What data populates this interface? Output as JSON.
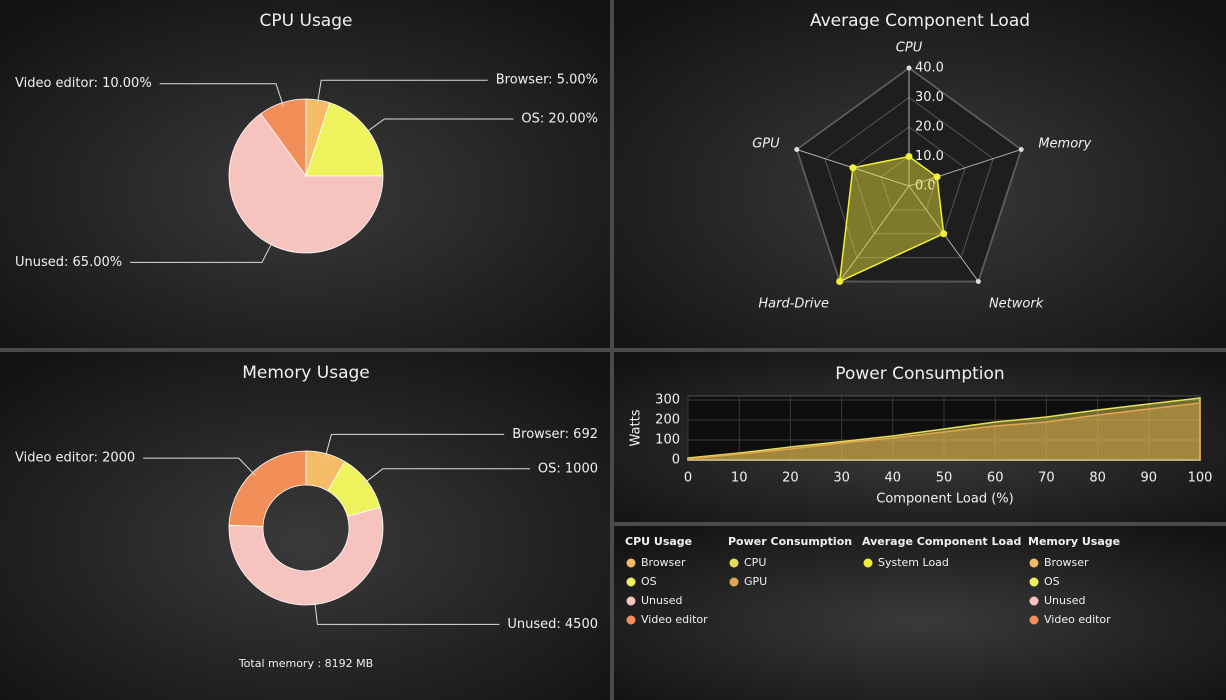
{
  "chart_data": [
    {
      "type": "pie",
      "title": "CPU Usage",
      "categories": [
        "Browser",
        "OS",
        "Unused",
        "Video editor"
      ],
      "values": [
        5,
        20,
        65,
        10
      ],
      "value_labels": [
        "Browser: 5.00%",
        "OS: 20.00%",
        "Unused: 65.00%",
        "Video editor: 10.00%"
      ],
      "colors": [
        "#f5bb66",
        "#eef25c",
        "#f7c3be",
        "#f28e57"
      ]
    },
    {
      "type": "radar",
      "title": "Average Component Load",
      "categories": [
        "CPU",
        "Memory",
        "Network",
        "Hard-Drive",
        "GPU"
      ],
      "ylim": [
        0,
        40
      ],
      "yticks": [
        {
          "value": 0,
          "label": "0.0"
        },
        {
          "value": 10,
          "label": "10.0"
        },
        {
          "value": 20,
          "label": "20.0"
        },
        {
          "value": 30,
          "label": "30.0"
        },
        {
          "value": 40,
          "label": "40.0"
        }
      ],
      "series": [
        {
          "name": "System Load",
          "color": "#f2ee3c",
          "values": [
            10,
            10,
            20,
            40,
            20
          ]
        }
      ]
    },
    {
      "type": "doughnut",
      "title": "Memory Usage",
      "categories": [
        "Browser",
        "OS",
        "Unused",
        "Video editor"
      ],
      "values": [
        692,
        1000,
        4500,
        2000
      ],
      "value_labels": [
        "Browser: 692",
        "OS: 1000",
        "Unused: 4500",
        "Video editor: 2000"
      ],
      "colors": [
        "#f5bb66",
        "#eef25c",
        "#f7c3be",
        "#f28e57"
      ],
      "annotation": "Total memory : 8192 MB"
    },
    {
      "type": "area",
      "title": "Power Consumption",
      "xlabel": "Component Load (%)",
      "ylabel": "Watts",
      "x": [
        0,
        10,
        20,
        30,
        40,
        50,
        60,
        70,
        80,
        90,
        100
      ],
      "xlim": [
        0,
        100
      ],
      "xticks": [
        0,
        10,
        20,
        30,
        40,
        50,
        60,
        70,
        80,
        90,
        100
      ],
      "ylim": [
        0,
        320
      ],
      "yticks": [
        0,
        100,
        200,
        300
      ],
      "grid": true,
      "series": [
        {
          "name": "CPU",
          "color": "#e6df58",
          "values": [
            10,
            35,
            65,
            92,
            120,
            155,
            190,
            215,
            250,
            280,
            310
          ]
        },
        {
          "name": "GPU",
          "color": "#e2a650",
          "values": [
            5,
            30,
            55,
            85,
            110,
            140,
            170,
            190,
            225,
            255,
            285
          ]
        }
      ]
    }
  ]
}
